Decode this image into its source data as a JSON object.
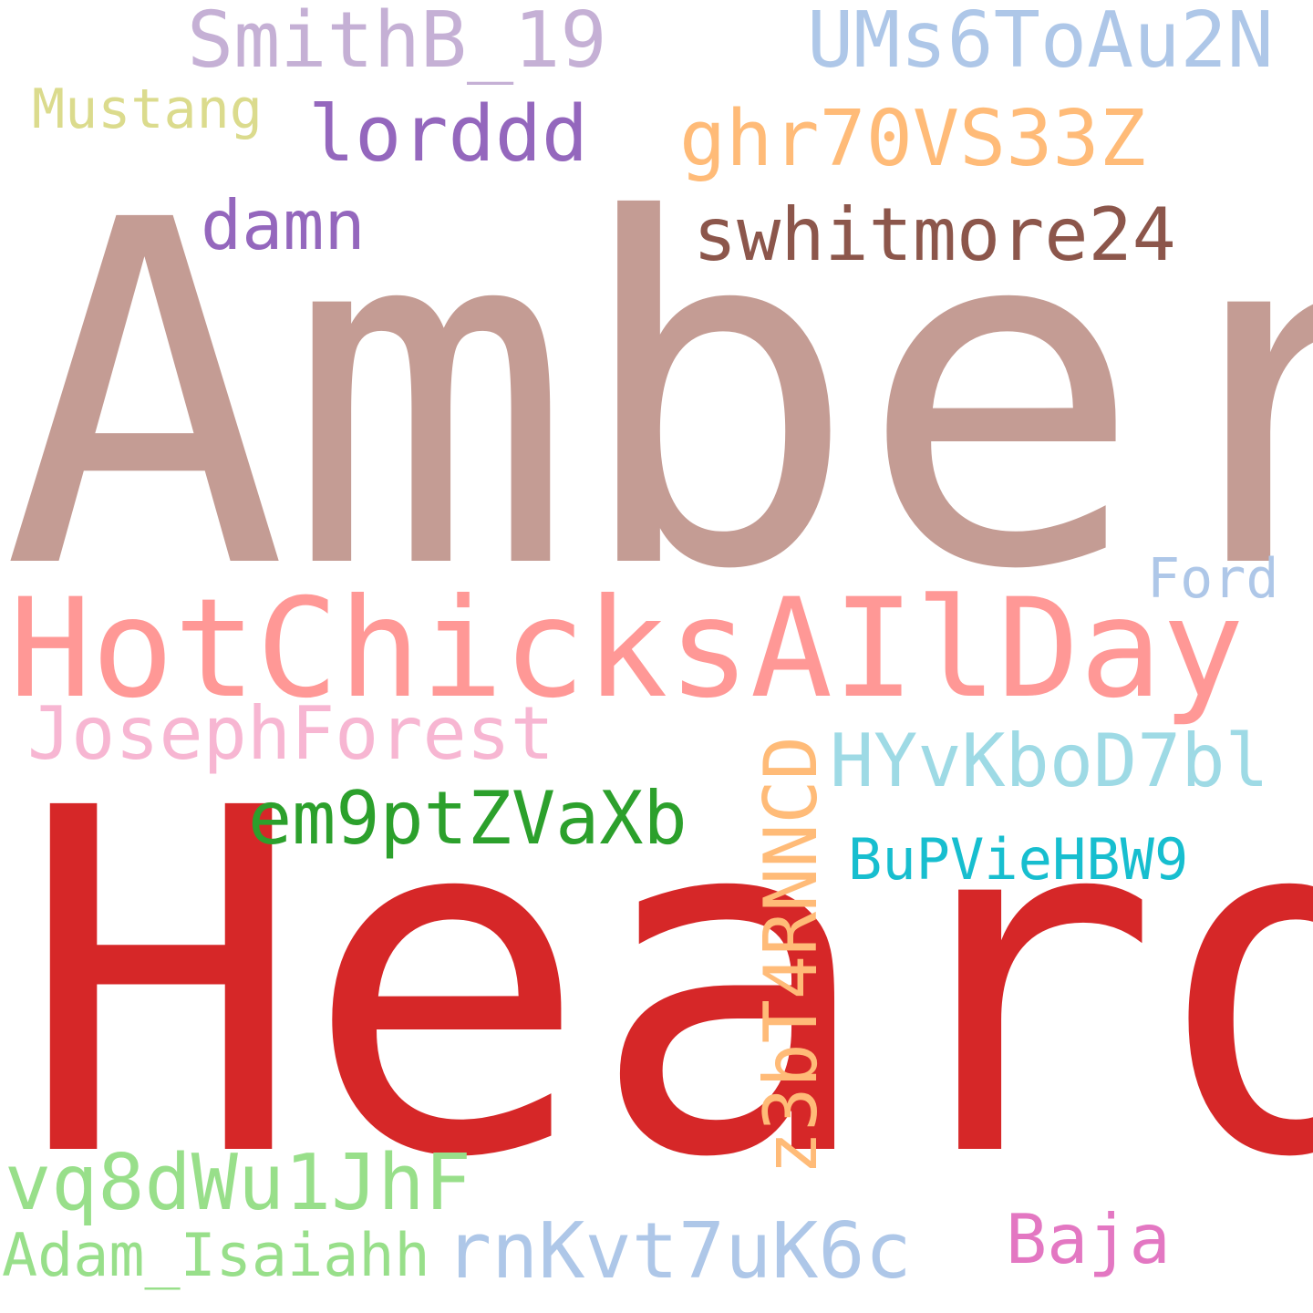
{
  "words": {
    "amber": {
      "text": "Amber",
      "color": "#c49c94"
    },
    "heard": {
      "text": "Heard",
      "color": "#d62728"
    },
    "hotchicks": {
      "text": "HotChicksAIlDay",
      "color": "#ff9896"
    },
    "smithb": {
      "text": "SmithB_19",
      "color": "#c5b0d5"
    },
    "ums": {
      "text": "UMs6ToAu2N",
      "color": "#aec7e8"
    },
    "mustang": {
      "text": "Mustang",
      "color": "#dbdb8d"
    },
    "lorddd": {
      "text": "lorddd",
      "color": "#9467bd"
    },
    "ghr": {
      "text": "ghr70VS33Z",
      "color": "#ffbb78"
    },
    "damn": {
      "text": "damn",
      "color": "#9467bd"
    },
    "swhitmore": {
      "text": "swhitmore24",
      "color": "#8c564b"
    },
    "ford": {
      "text": "Ford",
      "color": "#aec7e8"
    },
    "joseph": {
      "text": "JosephForest",
      "color": "#f7b6d2"
    },
    "hyv": {
      "text": "HYvKboD7bl",
      "color": "#9edae5"
    },
    "em9": {
      "text": "em9ptZVaXb",
      "color": "#2ca02c"
    },
    "bupv": {
      "text": "BuPVieHBW9",
      "color": "#17becf"
    },
    "z3b": {
      "text": "z3bT4RNNCD",
      "color": "#ffbb78"
    },
    "vq8": {
      "text": "vq8dWu1JhF",
      "color": "#98df8a"
    },
    "adam": {
      "text": "Adam_Isaiahh",
      "color": "#98df8a"
    },
    "rnk": {
      "text": "rnKvt7uK6c",
      "color": "#aec7e8"
    },
    "baja": {
      "text": "Baja",
      "color": "#e377c2"
    }
  }
}
